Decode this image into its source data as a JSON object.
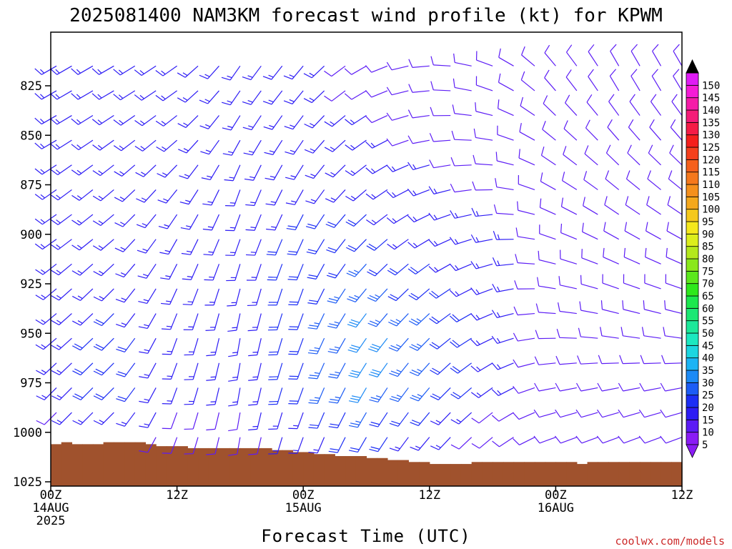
{
  "chart_data": {
    "type": "wind barb time-height profile",
    "title": "2025081400 NAM3KM forecast wind profile (kt) for KPWM",
    "xlabel": "Forecast Time (UTC)",
    "ylabel": "",
    "y_ticks": [
      825,
      850,
      875,
      900,
      925,
      950,
      975,
      1000,
      1025
    ],
    "y_range_hpa": [
      800,
      1025
    ],
    "y_inverted": true,
    "x_range_hours": [
      0,
      60
    ],
    "x_ticks": [
      {
        "hour": 0,
        "lines": [
          "00Z",
          "14AUG",
          "2025"
        ]
      },
      {
        "hour": 12,
        "lines": [
          "12Z"
        ]
      },
      {
        "hour": 24,
        "lines": [
          "00Z",
          "15AUG"
        ]
      },
      {
        "hour": 36,
        "lines": [
          "12Z"
        ]
      },
      {
        "hour": 48,
        "lines": [
          "00Z",
          "16AUG"
        ]
      },
      {
        "hour": 60,
        "lines": [
          "12Z"
        ]
      }
    ],
    "colorbar": {
      "units": "kt",
      "levels": [
        5,
        10,
        15,
        20,
        25,
        30,
        35,
        40,
        45,
        50,
        55,
        60,
        65,
        70,
        75,
        80,
        85,
        90,
        95,
        100,
        105,
        110,
        115,
        120,
        125,
        130,
        135,
        140,
        145,
        150
      ],
      "colors": [
        "#8a1cf5",
        "#5c1cf5",
        "#2d1cf5",
        "#1c2ef5",
        "#1c5cf5",
        "#1c8af5",
        "#1cb4f5",
        "#1cd6e0",
        "#1ce8c0",
        "#1ce89a",
        "#1ce874",
        "#1ce84e",
        "#2ee81c",
        "#5ce81c",
        "#8ae81c",
        "#b4e81c",
        "#dcee1c",
        "#f5e81c",
        "#f5c81c",
        "#f5a81c",
        "#f5901c",
        "#f5781c",
        "#f5601c",
        "#f5401c",
        "#f5201c",
        "#f51c46",
        "#f51c78",
        "#f51ca8",
        "#f51cd6",
        "#e01cf5"
      ]
    },
    "surface_pressure_hpa": [
      {
        "hour": 0,
        "p": 1006
      },
      {
        "hour": 1,
        "p": 1005
      },
      {
        "hour": 2,
        "p": 1006
      },
      {
        "hour": 3,
        "p": 1006
      },
      {
        "hour": 4,
        "p": 1006
      },
      {
        "hour": 5,
        "p": 1005
      },
      {
        "hour": 6,
        "p": 1005
      },
      {
        "hour": 7,
        "p": 1005
      },
      {
        "hour": 8,
        "p": 1005
      },
      {
        "hour": 9,
        "p": 1006
      },
      {
        "hour": 10,
        "p": 1007
      },
      {
        "hour": 11,
        "p": 1007
      },
      {
        "hour": 12,
        "p": 1007
      },
      {
        "hour": 13,
        "p": 1008
      },
      {
        "hour": 14,
        "p": 1008
      },
      {
        "hour": 15,
        "p": 1008
      },
      {
        "hour": 16,
        "p": 1008
      },
      {
        "hour": 17,
        "p": 1008
      },
      {
        "hour": 18,
        "p": 1008
      },
      {
        "hour": 19,
        "p": 1008
      },
      {
        "hour": 20,
        "p": 1008
      },
      {
        "hour": 21,
        "p": 1009
      },
      {
        "hour": 22,
        "p": 1009
      },
      {
        "hour": 23,
        "p": 1010
      },
      {
        "hour": 24,
        "p": 1010
      },
      {
        "hour": 25,
        "p": 1011
      },
      {
        "hour": 26,
        "p": 1011
      },
      {
        "hour": 27,
        "p": 1012
      },
      {
        "hour": 28,
        "p": 1012
      },
      {
        "hour": 29,
        "p": 1012
      },
      {
        "hour": 30,
        "p": 1013
      },
      {
        "hour": 31,
        "p": 1013
      },
      {
        "hour": 32,
        "p": 1014
      },
      {
        "hour": 33,
        "p": 1014
      },
      {
        "hour": 34,
        "p": 1015
      },
      {
        "hour": 35,
        "p": 1015
      },
      {
        "hour": 36,
        "p": 1016
      },
      {
        "hour": 37,
        "p": 1016
      },
      {
        "hour": 38,
        "p": 1016
      },
      {
        "hour": 39,
        "p": 1016
      },
      {
        "hour": 40,
        "p": 1015
      },
      {
        "hour": 41,
        "p": 1015
      },
      {
        "hour": 42,
        "p": 1015
      },
      {
        "hour": 43,
        "p": 1015
      },
      {
        "hour": 44,
        "p": 1015
      },
      {
        "hour": 45,
        "p": 1015
      },
      {
        "hour": 46,
        "p": 1015
      },
      {
        "hour": 47,
        "p": 1015
      },
      {
        "hour": 48,
        "p": 1015
      },
      {
        "hour": 49,
        "p": 1015
      },
      {
        "hour": 50,
        "p": 1016
      },
      {
        "hour": 51,
        "p": 1015
      },
      {
        "hour": 52,
        "p": 1015
      },
      {
        "hour": 53,
        "p": 1015
      },
      {
        "hour": 54,
        "p": 1015
      },
      {
        "hour": 55,
        "p": 1015
      },
      {
        "hour": 56,
        "p": 1015
      },
      {
        "hour": 57,
        "p": 1015
      },
      {
        "hour": 58,
        "p": 1015
      },
      {
        "hour": 59,
        "p": 1015
      },
      {
        "hour": 60,
        "p": 1015
      }
    ],
    "ground_color": "#a0522d",
    "barb_field": {
      "time_step_hours": 2,
      "pressure_levels": [
        1000,
        975,
        950,
        925,
        900,
        875,
        850,
        825
      ],
      "times_hours": [
        0,
        6,
        12,
        18,
        24,
        30,
        36,
        42,
        48,
        54,
        60
      ],
      "wind_dir_deg": [
        [
          225,
          225,
          200,
          190,
          200,
          210,
          220,
          230,
          250,
          250,
          250
        ],
        [
          225,
          225,
          200,
          190,
          200,
          210,
          220,
          235,
          260,
          260,
          260
        ],
        [
          230,
          225,
          200,
          190,
          200,
          215,
          225,
          245,
          270,
          280,
          280
        ],
        [
          230,
          225,
          205,
          195,
          200,
          220,
          230,
          250,
          280,
          290,
          290
        ],
        [
          235,
          230,
          210,
          200,
          205,
          225,
          240,
          260,
          290,
          300,
          300
        ],
        [
          235,
          230,
          220,
          200,
          210,
          230,
          250,
          270,
          300,
          310,
          310
        ],
        [
          240,
          235,
          230,
          210,
          215,
          235,
          260,
          280,
          310,
          320,
          320
        ],
        [
          240,
          240,
          235,
          215,
          220,
          240,
          265,
          290,
          320,
          330,
          330
        ]
      ],
      "wind_speed_kt": [
        [
          10,
          15,
          10,
          10,
          15,
          20,
          15,
          10,
          10,
          10,
          10
        ],
        [
          15,
          20,
          15,
          15,
          20,
          30,
          25,
          15,
          10,
          10,
          10
        ],
        [
          15,
          20,
          15,
          15,
          20,
          30,
          25,
          15,
          10,
          10,
          10
        ],
        [
          15,
          15,
          15,
          15,
          20,
          25,
          20,
          15,
          10,
          10,
          10
        ],
        [
          15,
          15,
          15,
          15,
          20,
          20,
          15,
          15,
          10,
          10,
          10
        ],
        [
          15,
          15,
          15,
          15,
          15,
          15,
          15,
          10,
          10,
          10,
          10
        ],
        [
          15,
          15,
          15,
          15,
          15,
          15,
          10,
          10,
          10,
          10,
          10
        ],
        [
          15,
          15,
          15,
          15,
          15,
          10,
          10,
          10,
          10,
          10,
          10
        ]
      ]
    }
  },
  "credit": "coolwx.com/models"
}
